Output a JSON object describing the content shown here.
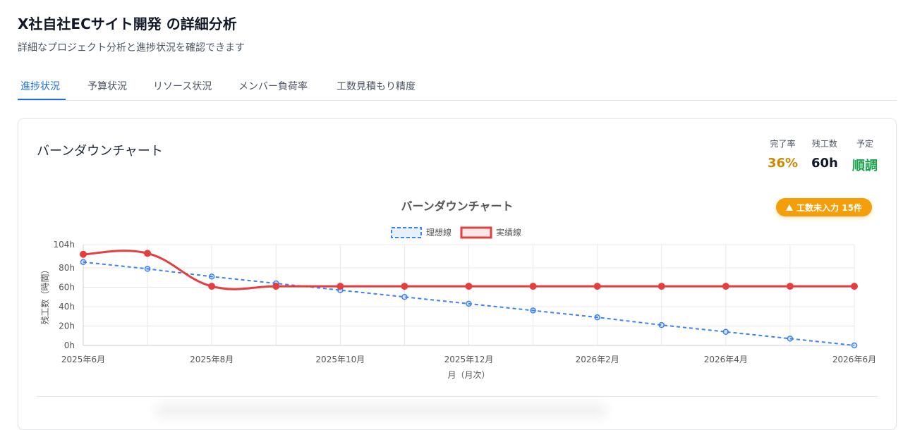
{
  "header": {
    "title": "X社自社ECサイト開発 の詳細分析",
    "subtitle": "詳細なプロジェクト分析と進捗状況を確認できます"
  },
  "tabs": [
    {
      "label": "進捗状況",
      "active": true
    },
    {
      "label": "予算状況",
      "active": false
    },
    {
      "label": "リソース状況",
      "active": false
    },
    {
      "label": "メンバー負荷率",
      "active": false
    },
    {
      "label": "工数見積もり精度",
      "active": false
    }
  ],
  "card": {
    "title": "バーンダウンチャート",
    "stats": [
      {
        "label": "完了率",
        "value": "36%",
        "color": "#ca8a04"
      },
      {
        "label": "残工数",
        "value": "60h",
        "color": "#111827"
      },
      {
        "label": "予定",
        "value": "順調",
        "color": "#16a34a"
      }
    ],
    "warning_badge": {
      "label": "工数未入力 15件",
      "icon": "warning-icon"
    }
  },
  "chart_data": {
    "type": "line",
    "title": "バーンダウンチャート",
    "xlabel": "月（月次）",
    "ylabel": "残工数（時間）",
    "x": [
      "2025年6月",
      "2025年7月",
      "2025年8月",
      "2025年9月",
      "2025年10月",
      "2025年11月",
      "2025年12月",
      "2026年1月",
      "2026年2月",
      "2026年3月",
      "2026年4月",
      "2026年5月",
      "2026年6月"
    ],
    "x_tick_labels": [
      "2025年6月",
      "2025年8月",
      "2025年10月",
      "2025年12月",
      "2026年2月",
      "2026年4月",
      "2026年6月"
    ],
    "y_tick_labels": [
      "0h",
      "20h",
      "40h",
      "60h",
      "80h",
      "104h"
    ],
    "y_ticks": [
      0,
      20,
      40,
      60,
      80,
      104
    ],
    "ylim": [
      0,
      104
    ],
    "legend_position": "top-center",
    "grid": true,
    "series": [
      {
        "name": "理想線",
        "style": "dashed",
        "color": "#3b82f6",
        "values": [
          86,
          79,
          71,
          64,
          57,
          50,
          43,
          36,
          29,
          21,
          14,
          7,
          0
        ]
      },
      {
        "name": "実績線",
        "style": "solid",
        "color": "#e53e3e",
        "values": [
          94,
          95,
          61,
          61,
          61,
          61,
          61,
          61,
          61,
          61,
          61,
          61,
          61
        ]
      }
    ]
  }
}
